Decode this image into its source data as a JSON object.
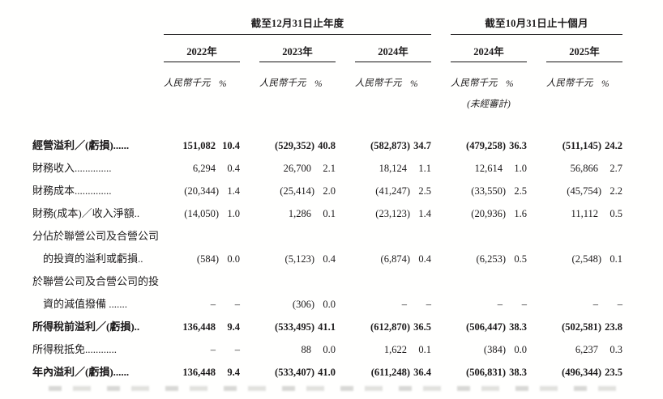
{
  "table": {
    "group1_title": "截至12月31日止年度",
    "group2_title": "截至10月31日止十個月",
    "years": [
      "2022年",
      "2023年",
      "2024年",
      "2024年",
      "2025年"
    ],
    "unit_label": "人民幣千元",
    "pct_label": "%",
    "unaudited_note": "(未經審計)",
    "rows": [
      {
        "label": [
          "經營溢利／(虧損)......"
        ],
        "bold": true,
        "values": [
          "151,082",
          "10.4",
          "(529,352)",
          "40.8",
          "(582,873)",
          "34.7",
          "(479,258)",
          "36.3",
          "(511,145)",
          "24.2"
        ]
      },
      {
        "label": [
          "財務收入.............."
        ],
        "bold": false,
        "values": [
          "6,294",
          "0.4",
          "26,700",
          "2.1",
          "18,124",
          "1.1",
          "12,614",
          "1.0",
          "56,866",
          "2.7"
        ]
      },
      {
        "label": [
          "財務成本.............."
        ],
        "bold": false,
        "values": [
          "(20,344)",
          "1.4",
          "(25,414)",
          "2.0",
          "(41,247)",
          "2.5",
          "(33,550)",
          "2.5",
          "(45,754)",
          "2.2"
        ]
      },
      {
        "label": [
          "財務(成本)／收入淨額.."
        ],
        "bold": false,
        "values": [
          "(14,050)",
          "1.0",
          "1,286",
          "0.1",
          "(23,123)",
          "1.4",
          "(20,936)",
          "1.6",
          "11,112",
          "0.5"
        ]
      },
      {
        "label": [
          "分佔於聯營公司及合營公司",
          "的投資的溢利或虧損.."
        ],
        "bold": false,
        "values": [
          "(584)",
          "0.0",
          "(5,123)",
          "0.4",
          "(6,874)",
          "0.4",
          "(6,253)",
          "0.5",
          "(2,548)",
          "0.1"
        ]
      },
      {
        "label": [
          "於聯營公司及合營公司的投",
          "資的減值撥備 ......."
        ],
        "bold": false,
        "values": [
          "–",
          "–",
          "(306)",
          "0.0",
          "–",
          "–",
          "–",
          "–",
          "–",
          "–"
        ]
      },
      {
        "label": [
          "所得稅前溢利／(虧損).."
        ],
        "bold": true,
        "values": [
          "136,448",
          "9.4",
          "(533,495)",
          "41.1",
          "(612,870)",
          "36.5",
          "(506,447)",
          "38.3",
          "(502,581)",
          "23.8"
        ]
      },
      {
        "label": [
          "所得稅抵免............"
        ],
        "bold": false,
        "values": [
          "–",
          "–",
          "88",
          "0.0",
          "1,622",
          "0.1",
          "(384)",
          "0.0",
          "6,237",
          "0.3"
        ]
      },
      {
        "label": [
          "年內溢利／(虧損)......"
        ],
        "bold": true,
        "values": [
          "136,448",
          "9.4",
          "(533,407)",
          "41.0",
          "(611,248)",
          "36.4",
          "(506,831)",
          "38.3",
          "(496,344)",
          "23.5"
        ]
      }
    ]
  },
  "colors": {
    "text": "#1c1a1b",
    "rule": "#141213",
    "background": "#ffffff"
  }
}
